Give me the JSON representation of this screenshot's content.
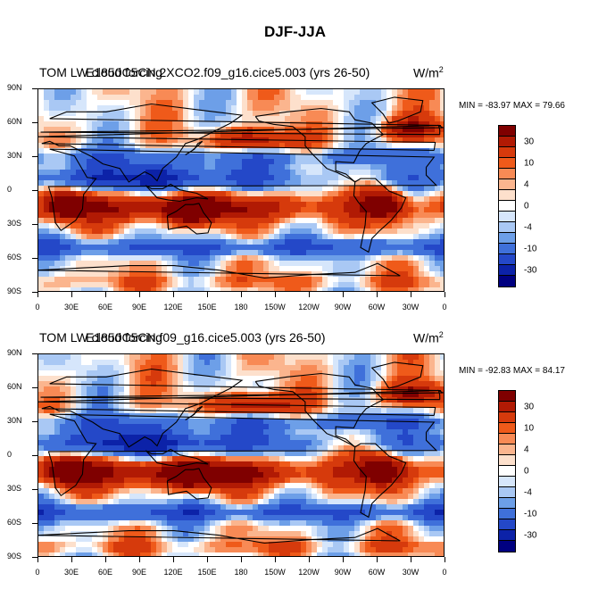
{
  "page": {
    "title": "DJF-JJA"
  },
  "panels": [
    {
      "left_title": "TOM LW cloud forcing",
      "case_name": "E1850C5CN.2XCO2.f09_g16.cice5.003 (yrs 26-50)",
      "units": "W/m",
      "units_sup": "2",
      "min_label": "MIN =",
      "min_value": "-83.97",
      "max_label": "MAX =",
      "max_value": "79.66"
    },
    {
      "left_title": "TOM LW cloud forcing",
      "case_name": "E1850C5CN.f09_g16.cice5.003 (yrs 26-50)",
      "units": "W/m",
      "units_sup": "2",
      "min_label": "MIN =",
      "min_value": "-92.83",
      "max_label": "MAX =",
      "max_value": "84.17"
    }
  ],
  "lat_labels": [
    "90N",
    "60N",
    "30N",
    "0",
    "30S",
    "60S",
    "90S"
  ],
  "lon_labels": [
    "0",
    "30E",
    "60E",
    "90E",
    "120E",
    "150E",
    "180",
    "150W",
    "120W",
    "90W",
    "60W",
    "30W",
    "0"
  ],
  "colorbar": {
    "colors": [
      "#7f0000",
      "#b11a04",
      "#d63a0c",
      "#ef5a1a",
      "#f88a55",
      "#fbb58e",
      "#fde0cc",
      "#ffffff",
      "#d6e6fb",
      "#a9c8f4",
      "#6d9fe8",
      "#3f70da",
      "#2448c8",
      "#0c22a8",
      "#000080"
    ],
    "labels": [
      "30",
      "10",
      "4",
      "0",
      "-4",
      "-10",
      "-30"
    ]
  },
  "chart_data": [
    {
      "type": "heatmap",
      "title": "DJF-JJA",
      "subtitle": "TOM LW cloud forcing — E1850C5CN.2XCO2.f09_g16.cice5.003 (yrs 26-50)",
      "units": "W/m2",
      "min": -83.97,
      "max": 79.66,
      "x_ticks": [
        "0",
        "30E",
        "60E",
        "90E",
        "120E",
        "150E",
        "180",
        "150W",
        "120W",
        "90W",
        "60W",
        "30W",
        "0"
      ],
      "y_ticks": [
        "90N",
        "60N",
        "30N",
        "0",
        "30S",
        "60S",
        "90S"
      ],
      "contour_levels": [
        -30,
        -10,
        -4,
        0,
        4,
        10,
        30
      ]
    },
    {
      "type": "heatmap",
      "title": "DJF-JJA",
      "subtitle": "TOM LW cloud forcing — E1850C5CN.f09_g16.cice5.003 (yrs 26-50)",
      "units": "W/m2",
      "min": -92.83,
      "max": 84.17,
      "x_ticks": [
        "0",
        "30E",
        "60E",
        "90E",
        "120E",
        "150E",
        "180",
        "150W",
        "120W",
        "90W",
        "60W",
        "30W",
        "0"
      ],
      "y_ticks": [
        "90N",
        "60N",
        "30N",
        "0",
        "30S",
        "60S",
        "90S"
      ],
      "contour_levels": [
        -30,
        -10,
        -4,
        0,
        4,
        10,
        30
      ]
    }
  ]
}
